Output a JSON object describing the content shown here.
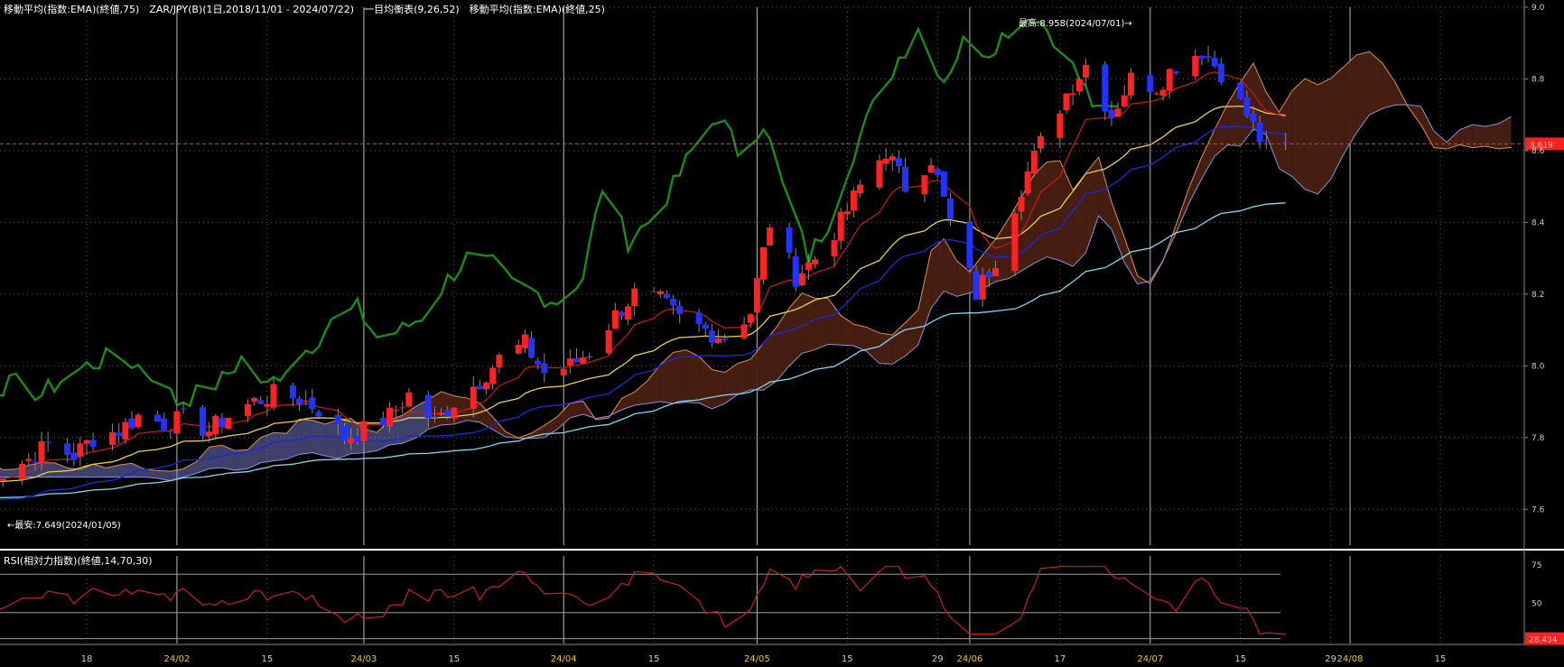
{
  "header": {
    "main_title": "移動平均(指数:EMA)(終値,75)　ZAR/JPY(B)(1日,2018/11/01 - 2024/07/22)　一目均衡表(9,26,52)　移動平均(指数:EMA)(終値,25)",
    "rsi_title": "RSI(相対力指数)(終値,14,70,30)"
  },
  "annotations": {
    "high_label": "最高:8.958(2024/07/01)→",
    "low_label": "←最安:7.649(2024/01/05)",
    "current_price": "8.619",
    "current_rsi": "28.434"
  },
  "colors": {
    "up_candle": "#ff2222",
    "down_candle": "#2233ff",
    "ema75": "#7fd8ef",
    "ema25": "#e8d050",
    "tenkan": "#cc1a1a",
    "kijun": "#1a2ad0",
    "chikou": "#1a8c1a",
    "cloud_bull": "#8a8ee8",
    "cloud_bear": "#4a1f12",
    "rsi_line": "#c82020",
    "price_line": "#ff3333"
  },
  "chart_data": {
    "type": "candlestick",
    "instrument": "ZAR/JPY(B)",
    "price_axis": {
      "ylim": [
        7.5,
        9.0
      ],
      "ticks": [
        "9.0",
        "8.8",
        "8.6",
        "8.4",
        "8.2",
        "8.0",
        "7.8",
        "7.6"
      ]
    },
    "rsi_axis": {
      "ylim": [
        25,
        75
      ],
      "ticks": [
        "75",
        "50",
        "25"
      ]
    },
    "x_axis_labels": [
      {
        "text": "18",
        "date": "2024-01-18"
      },
      {
        "text": "24/02",
        "date": "2024-02-01"
      },
      {
        "text": "15",
        "date": "2024-02-15"
      },
      {
        "text": "24/03",
        "date": "2024-03-01"
      },
      {
        "text": "15",
        "date": "2024-03-15"
      },
      {
        "text": "24/04",
        "date": "2024-04-01"
      },
      {
        "text": "15",
        "date": "2024-04-15"
      },
      {
        "text": "24/05",
        "date": "2024-05-01"
      },
      {
        "text": "15",
        "date": "2024-05-15"
      },
      {
        "text": "29",
        "date": "2024-05-29"
      },
      {
        "text": "24/06",
        "date": "2024-06-03"
      },
      {
        "text": "17",
        "date": "2024-06-17"
      },
      {
        "text": "24/07",
        "date": "2024-07-01"
      },
      {
        "text": "15",
        "date": "2024-07-15"
      },
      {
        "text": "29",
        "date": "2024-07-29"
      },
      {
        "text": "24/08",
        "date": "2024-08-01"
      },
      {
        "text": "15",
        "date": "2024-08-15"
      }
    ],
    "close_path": [
      [
        "2024-01-02",
        7.72
      ],
      [
        "2024-01-05",
        7.7
      ],
      [
        "2024-01-09",
        7.74
      ],
      [
        "2024-01-12",
        7.78
      ],
      [
        "2024-01-16",
        7.75
      ],
      [
        "2024-01-19",
        7.8
      ],
      [
        "2024-01-23",
        7.82
      ],
      [
        "2024-01-26",
        7.86
      ],
      [
        "2024-01-30",
        7.84
      ],
      [
        "2024-02-02",
        7.85
      ],
      [
        "2024-02-06",
        7.82
      ],
      [
        "2024-02-09",
        7.86
      ],
      [
        "2024-02-13",
        7.9
      ],
      [
        "2024-02-16",
        7.92
      ],
      [
        "2024-02-20",
        7.91
      ],
      [
        "2024-02-23",
        7.88
      ],
      [
        "2024-02-27",
        7.8
      ],
      [
        "2024-03-01",
        7.82
      ],
      [
        "2024-03-05",
        7.86
      ],
      [
        "2024-03-08",
        7.92
      ],
      [
        "2024-03-12",
        7.84
      ],
      [
        "2024-03-15",
        7.9
      ],
      [
        "2024-03-19",
        7.96
      ],
      [
        "2024-03-22",
        8.02
      ],
      [
        "2024-03-26",
        8.06
      ],
      [
        "2024-03-29",
        7.98
      ],
      [
        "2024-04-02",
        8.0
      ],
      [
        "2024-04-05",
        8.04
      ],
      [
        "2024-04-09",
        8.14
      ],
      [
        "2024-04-12",
        8.2
      ],
      [
        "2024-04-16",
        8.18
      ],
      [
        "2024-04-19",
        8.13
      ],
      [
        "2024-04-23",
        8.1
      ],
      [
        "2024-04-26",
        8.08
      ],
      [
        "2024-04-30",
        8.15
      ],
      [
        "2024-05-03",
        8.4
      ],
      [
        "2024-05-07",
        8.25
      ],
      [
        "2024-05-10",
        8.3
      ],
      [
        "2024-05-14",
        8.4
      ],
      [
        "2024-05-17",
        8.5
      ],
      [
        "2024-05-21",
        8.6
      ],
      [
        "2024-05-24",
        8.5
      ],
      [
        "2024-05-28",
        8.58
      ],
      [
        "2024-05-31",
        8.4
      ],
      [
        "2024-06-04",
        8.2
      ],
      [
        "2024-06-07",
        8.3
      ],
      [
        "2024-06-11",
        8.5
      ],
      [
        "2024-06-14",
        8.62
      ],
      [
        "2024-06-18",
        8.76
      ],
      [
        "2024-06-21",
        8.84
      ],
      [
        "2024-06-25",
        8.7
      ],
      [
        "2024-06-28",
        8.8
      ],
      [
        "2024-07-02",
        8.78
      ],
      [
        "2024-07-05",
        8.84
      ],
      [
        "2024-07-09",
        8.88
      ],
      [
        "2024-07-12",
        8.82
      ],
      [
        "2024-07-16",
        8.7
      ],
      [
        "2024-07-19",
        8.6
      ],
      [
        "2024-07-22",
        8.61
      ]
    ]
  }
}
